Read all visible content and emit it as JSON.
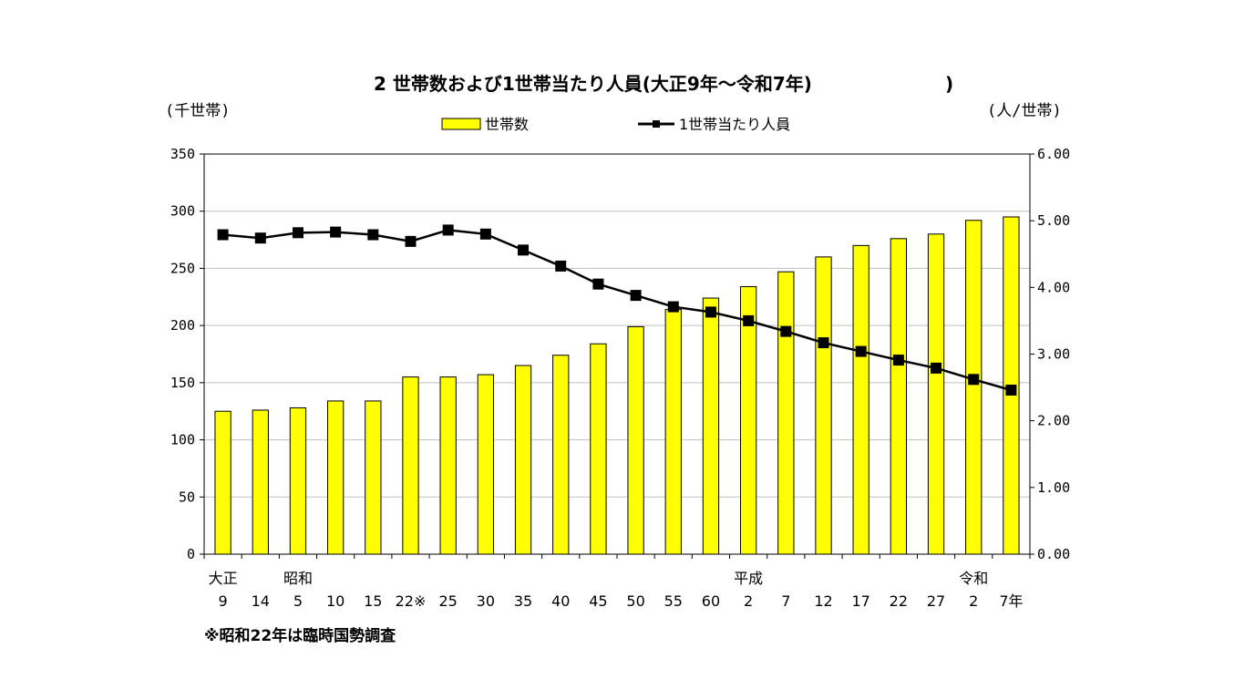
{
  "chart_data": {
    "type": "bar",
    "title": "2 世帯数および1世帯当たり人員(大正9年～令和7年)",
    "title_closing": ")",
    "left_unit": "(千世帯)",
    "right_unit": "(人/世帯)",
    "categories": [
      "9",
      "14",
      "5",
      "10",
      "15",
      "22※",
      "25",
      "30",
      "35",
      "40",
      "45",
      "50",
      "55",
      "60",
      "2",
      "7",
      "12",
      "17",
      "22",
      "27",
      "2",
      "7年"
    ],
    "era_labels": [
      {
        "index": 0,
        "text": "大正"
      },
      {
        "index": 2,
        "text": "昭和"
      },
      {
        "index": 14,
        "text": "平成"
      },
      {
        "index": 20,
        "text": "令和"
      }
    ],
    "series": [
      {
        "name": "世帯数",
        "type": "bar",
        "axis": "left",
        "color": "#ffff00",
        "values": [
          125,
          126,
          128,
          134,
          134,
          155,
          155,
          157,
          165,
          174,
          184,
          199,
          214,
          224,
          234,
          247,
          260,
          270,
          276,
          280,
          292,
          295
        ]
      },
      {
        "name": "1世帯当たり人員",
        "type": "line",
        "axis": "right",
        "color": "#000000",
        "values": [
          4.79,
          4.74,
          4.82,
          4.83,
          4.79,
          4.69,
          4.86,
          4.8,
          4.56,
          4.32,
          4.05,
          3.88,
          3.71,
          3.63,
          3.5,
          3.34,
          3.17,
          3.04,
          2.91,
          2.79,
          2.62,
          2.46
        ]
      }
    ],
    "y_left": {
      "min": 0,
      "max": 350,
      "ticks": [
        "0",
        "50",
        "100",
        "150",
        "200",
        "250",
        "300",
        "350"
      ]
    },
    "y_right": {
      "min": 0,
      "max": 6,
      "ticks": [
        "0.00",
        "1.00",
        "2.00",
        "3.00",
        "4.00",
        "5.00",
        "6.00"
      ]
    },
    "grid": true,
    "legend_position": "top-center",
    "note": "※昭和22年は臨時国勢調査"
  }
}
